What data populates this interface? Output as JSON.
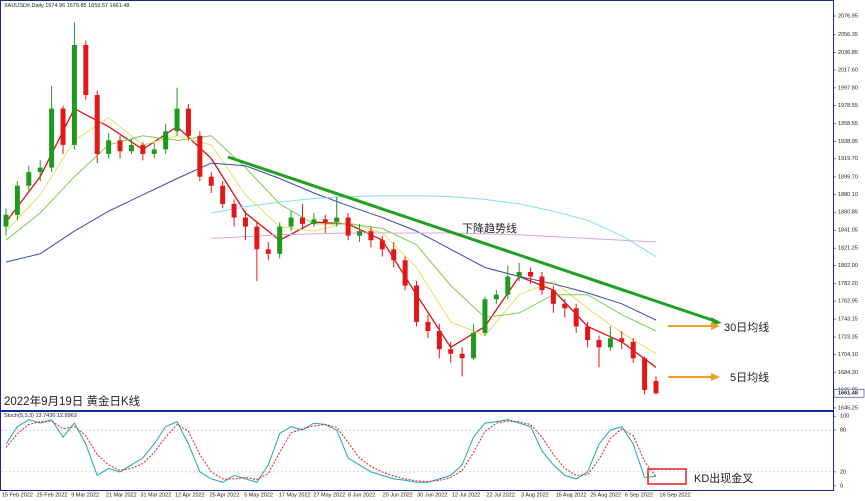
{
  "chart_data": [
    {
      "type": "candlestick",
      "title": "XAUUSD#,Daily",
      "x_labels": [
        "15 Feb 2022",
        "25 Feb 2022",
        "9 Mar 2022",
        "21 Mar 2022",
        "31 Mar 2022",
        "12 Apr 2022",
        "25 Apr 2022",
        "5 May 2022",
        "17 May 2022",
        "27 May 2022",
        "8 Jun 2022",
        "20 Jun 2022",
        "30 Jun 2022",
        "12 Jul 2022",
        "22 Jul 2022",
        "3 Aug 2022",
        "15 Aug 2022",
        "25 Aug 2022",
        "6 Sep 2022",
        "16 Sep 2022"
      ],
      "open": [
        1845,
        1858,
        1890,
        1905,
        1910,
        1975,
        1935,
        2045,
        1990,
        1925,
        1940,
        1928,
        1935,
        1925,
        1930,
        1950,
        1975,
        1945,
        1900,
        1890,
        1870,
        1855,
        1845,
        1820,
        1815,
        1845,
        1855,
        1848,
        1853,
        1850,
        1855,
        1835,
        1840,
        1830,
        1820,
        1808,
        1780,
        1740,
        1730,
        1710,
        1705,
        1700,
        1728,
        1765,
        1770,
        1790,
        1795,
        1790,
        1775,
        1760,
        1755,
        1735,
        1720,
        1712,
        1722,
        1718,
        1700,
        1674.96
      ],
      "high": [
        1865,
        1895,
        1912,
        1918,
        2000,
        1978,
        2070,
        2050,
        1995,
        1948,
        1945,
        1942,
        1938,
        1937,
        1958,
        1998,
        1980,
        1950,
        1905,
        1895,
        1875,
        1862,
        1850,
        1828,
        1850,
        1862,
        1870,
        1860,
        1858,
        1878,
        1860,
        1848,
        1845,
        1835,
        1828,
        1812,
        1785,
        1748,
        1738,
        1718,
        1712,
        1738,
        1768,
        1775,
        1802,
        1805,
        1800,
        1795,
        1780,
        1765,
        1760,
        1740,
        1725,
        1735,
        1730,
        1722,
        1702,
        1679.85
      ],
      "low": [
        1835,
        1852,
        1885,
        1895,
        1905,
        1925,
        1930,
        1985,
        1915,
        1920,
        1920,
        1925,
        1918,
        1920,
        1925,
        1945,
        1940,
        1895,
        1882,
        1865,
        1845,
        1830,
        1785,
        1808,
        1810,
        1840,
        1842,
        1845,
        1838,
        1845,
        1830,
        1828,
        1822,
        1812,
        1800,
        1775,
        1735,
        1722,
        1700,
        1695,
        1680,
        1698,
        1725,
        1760,
        1765,
        1785,
        1782,
        1770,
        1750,
        1745,
        1728,
        1712,
        1690,
        1708,
        1710,
        1695,
        1660,
        1659.57
      ],
      "close": [
        1858,
        1890,
        1905,
        1910,
        1975,
        1935,
        2045,
        1990,
        1925,
        1940,
        1928,
        1935,
        1925,
        1930,
        1950,
        1975,
        1945,
        1900,
        1890,
        1870,
        1855,
        1845,
        1820,
        1815,
        1845,
        1855,
        1848,
        1853,
        1850,
        1855,
        1835,
        1840,
        1830,
        1820,
        1808,
        1780,
        1740,
        1730,
        1710,
        1705,
        1700,
        1728,
        1765,
        1770,
        1790,
        1795,
        1790,
        1775,
        1760,
        1755,
        1735,
        1720,
        1712,
        1722,
        1718,
        1700,
        1665,
        1661.48
      ],
      "up_color": "#1f9a1f",
      "down_color": "#e01818",
      "ma_index": [
        0,
        3,
        6,
        9,
        12,
        15,
        18,
        21,
        24,
        27,
        30,
        33,
        36,
        39,
        42,
        45,
        48,
        51,
        54,
        57
      ],
      "series": [
        {
          "color": "#d81010",
          "values": [
            1850,
            1900,
            1975,
            1955,
            1930,
            1955,
            1920,
            1860,
            1830,
            1850,
            1848,
            1830,
            1770,
            1712,
            1735,
            1790,
            1775,
            1735,
            1718,
            1690
          ]
        },
        {
          "color": "#e8e060",
          "values": [
            1840,
            1880,
            1940,
            1965,
            1935,
            1945,
            1935,
            1880,
            1845,
            1840,
            1850,
            1838,
            1800,
            1740,
            1725,
            1770,
            1785,
            1755,
            1728,
            1705
          ]
        },
        {
          "color": "#7ccc50",
          "values": [
            1830,
            1860,
            1900,
            1935,
            1945,
            1940,
            1945,
            1910,
            1870,
            1848,
            1848,
            1843,
            1825,
            1780,
            1745,
            1750,
            1770,
            1770,
            1748,
            1730
          ]
        },
        {
          "color": "#3a4aa8",
          "values": [
            1806,
            1815,
            1840,
            1862,
            1880,
            1898,
            1915,
            1912,
            1898,
            1882,
            1868,
            1855,
            1840,
            1820,
            1800,
            1790,
            1782,
            1772,
            1760,
            1742
          ]
        },
        {
          "color": "#7fe0f0",
          "values": [
            null,
            null,
            null,
            null,
            null,
            null,
            1860,
            1867,
            1872,
            1876,
            1878,
            1879,
            1879,
            1878,
            1875,
            1870,
            1862,
            1852,
            1835,
            1812
          ]
        },
        {
          "color": "#d8a8d8",
          "values": [
            null,
            null,
            null,
            null,
            null,
            null,
            1832,
            1834,
            1836,
            1837,
            1838,
            1838,
            1838,
            1838,
            1837,
            1836,
            1834,
            1832,
            1830,
            1828
          ]
        }
      ],
      "ylim": [
        1643,
        2092.4
      ],
      "yticks": [
        2076.95,
        2056.35,
        2036.85,
        {
          "value": 2017.6,
          "label": "2017.60"
        },
        {
          "value": 1997.8,
          "label": "1997.80"
        },
        1978.55,
        1958.55,
        1938.95,
        {
          "value": 1919.7,
          "label": "1919.70"
        },
        {
          "value": 1899.7,
          "label": "1899.70"
        },
        {
          "value": 1880.1,
          "label": "1880.10"
        },
        1860.85,
        1841.05,
        1821.25,
        {
          "value": 1802,
          "label": "1802.00"
        },
        {
          "value": 1782.2,
          "label": "1782.20"
        },
        1762.95,
        1743.15,
        1723.35,
        {
          "value": 1704.1,
          "label": "1704.10"
        },
        {
          "value": 1684.3,
          "label": "1684.30"
        },
        1665.05,
        1645.25
      ],
      "annotations": [
        "下降趋势线",
        "30日均线",
        "5日均线",
        "2022年9月19日 黄金日K线",
        "KD出现金叉"
      ]
    },
    {
      "type": "stoch",
      "title": "Stoch(5,3,3)",
      "k": [
        60,
        85,
        95,
        90,
        95,
        70,
        90,
        60,
        15,
        25,
        20,
        30,
        40,
        60,
        85,
        92,
        60,
        20,
        10,
        5,
        15,
        10,
        5,
        30,
        75,
        85,
        80,
        90,
        88,
        80,
        40,
        30,
        20,
        15,
        10,
        8,
        5,
        5,
        10,
        15,
        30,
        70,
        90,
        92,
        95,
        90,
        85,
        50,
        30,
        15,
        10,
        20,
        60,
        80,
        85,
        60,
        12,
        13.7436
      ],
      "d": [
        55,
        75,
        88,
        92,
        93,
        82,
        85,
        72,
        45,
        30,
        22,
        25,
        32,
        48,
        70,
        88,
        78,
        45,
        20,
        10,
        10,
        12,
        9,
        18,
        48,
        76,
        82,
        86,
        88,
        84,
        62,
        40,
        28,
        20,
        14,
        10,
        7,
        6,
        8,
        12,
        22,
        48,
        78,
        90,
        93,
        92,
        88,
        70,
        45,
        25,
        15,
        16,
        38,
        68,
        82,
        72,
        35,
        12.8963
      ],
      "k_color": "#20a8b0",
      "d_color": "#e02020",
      "ylim": [
        -6,
        106
      ],
      "yticks": [
        100,
        80,
        20,
        0
      ]
    }
  ]
}
